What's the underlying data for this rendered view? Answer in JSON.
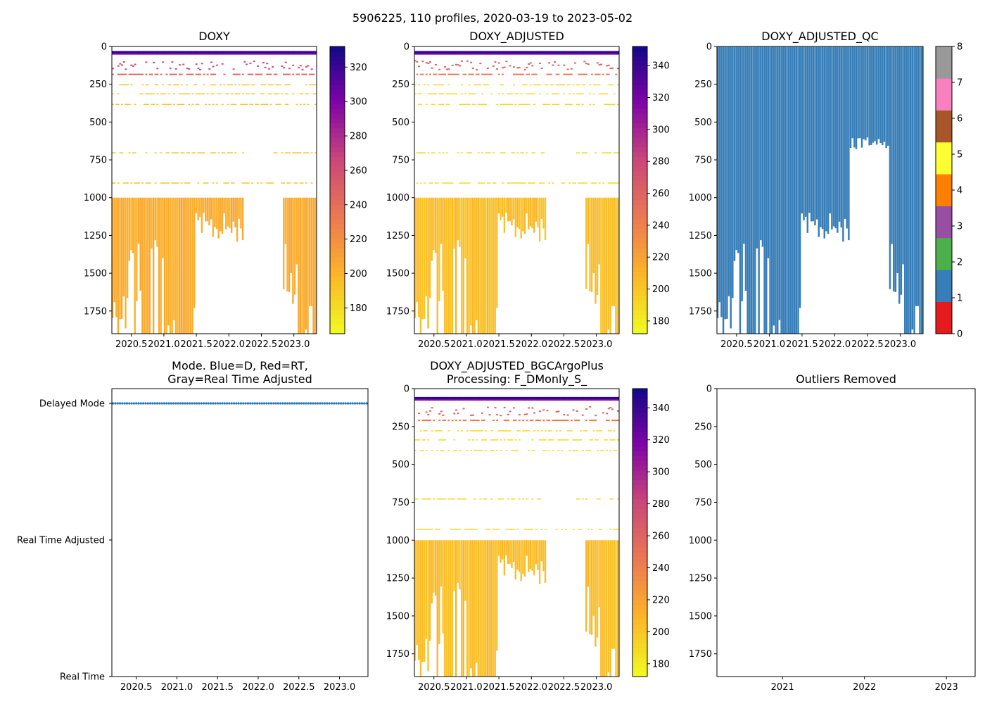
{
  "suptitle": "5906225, 110 profiles, 2020-03-19 to 2023-05-02",
  "colors": {
    "mode_delayed": "#1f77b4",
    "qc_good": "#377eb8",
    "doxy_bulk": "#fbb828"
  },
  "chart_data": [
    {
      "id": "doxy",
      "type": "heatmap",
      "title": "DOXY",
      "xlabel": "",
      "ylabel": "",
      "xlim": [
        2020.2,
        2023.35
      ],
      "ylim": [
        1900,
        0
      ],
      "xticks": [
        "2020.5",
        "2021.0",
        "2021.5",
        "2022.0",
        "2022.5",
        "2023.0"
      ],
      "yticks": [
        "0",
        "250",
        "500",
        "750",
        "1000",
        "1250",
        "1500",
        "1750"
      ],
      "colormap": "plasma_r",
      "colorbar": {
        "min": 165,
        "max": 332,
        "ticks": [
          "180",
          "200",
          "220",
          "240",
          "260",
          "280",
          "300",
          "320"
        ]
      }
    },
    {
      "id": "doxy_adjusted",
      "type": "heatmap",
      "title": "DOXY_ADJUSTED",
      "xlabel": "",
      "ylabel": "",
      "xlim": [
        2020.2,
        2023.35
      ],
      "ylim": [
        1900,
        0
      ],
      "xticks": [
        "2020.5",
        "2021.0",
        "2021.5",
        "2022.0",
        "2022.5",
        "2023.0"
      ],
      "yticks": [
        "0",
        "250",
        "500",
        "750",
        "1000",
        "1250",
        "1500",
        "1750"
      ],
      "colormap": "plasma_r",
      "colorbar": {
        "min": 172,
        "max": 352,
        "ticks": [
          "180",
          "200",
          "220",
          "240",
          "260",
          "280",
          "300",
          "320",
          "340"
        ]
      }
    },
    {
      "id": "doxy_adjusted_qc",
      "type": "heatmap",
      "title": "DOXY_ADJUSTED_QC",
      "xlabel": "",
      "ylabel": "",
      "xlim": [
        2020.2,
        2023.35
      ],
      "ylim": [
        1900,
        0
      ],
      "xticks": [
        "2020.5",
        "2021.0",
        "2021.5",
        "2022.0",
        "2022.5",
        "2023.0"
      ],
      "yticks": [
        "0",
        "250",
        "500",
        "750",
        "1000",
        "1250",
        "1500",
        "1750"
      ],
      "colorbar": {
        "ticks": [
          "0",
          "1",
          "2",
          "3",
          "4",
          "5",
          "6",
          "7",
          "8"
        ],
        "categories": [
          {
            "value": 0,
            "color": "#e41a1c"
          },
          {
            "value": 1,
            "color": "#377eb8"
          },
          {
            "value": 2,
            "color": "#4daf4a"
          },
          {
            "value": 3,
            "color": "#984ea3"
          },
          {
            "value": 4,
            "color": "#ff7f00"
          },
          {
            "value": 5,
            "color": "#ffff33"
          },
          {
            "value": 6,
            "color": "#a65628"
          },
          {
            "value": 7,
            "color": "#f781bf"
          },
          {
            "value": 8,
            "color": "#999999"
          }
        ]
      }
    },
    {
      "id": "mode",
      "type": "scatter",
      "title": "Mode. Blue=D, Red=RT,\nGray=Real Time Adjusted",
      "title_lines": [
        "Mode. Blue=D, Red=RT,",
        "Gray=Real Time Adjusted"
      ],
      "xlabel": "",
      "ylabel": "",
      "xlim": [
        2020.2,
        2023.35
      ],
      "xticks": [
        "2020.5",
        "2021.0",
        "2021.5",
        "2022.0",
        "2022.5",
        "2023.0"
      ],
      "ycategories": [
        "Delayed Mode",
        "Real Time Adjusted",
        "Real Time"
      ],
      "points_count": 110,
      "all_points_mode": "Delayed Mode"
    },
    {
      "id": "bgcargoplus",
      "type": "heatmap",
      "title": "DOXY_ADJUSTED_BGCArgoPlus\nProcessing: F_DMonly_S_",
      "title_lines": [
        "DOXY_ADJUSTED_BGCArgoPlus",
        "Processing: F_DMonly_S_"
      ],
      "xlabel": "",
      "ylabel": "",
      "xlim": [
        2020.2,
        2023.35
      ],
      "ylim": [
        1900,
        0
      ],
      "xticks": [
        "2020.5",
        "2021.0",
        "2021.5",
        "2022.0",
        "2022.5",
        "2023.0"
      ],
      "yticks": [
        "0",
        "250",
        "500",
        "750",
        "1000",
        "1250",
        "1500",
        "1750"
      ],
      "colormap": "plasma_r",
      "colorbar": {
        "min": 172,
        "max": 352,
        "ticks": [
          "180",
          "200",
          "220",
          "240",
          "260",
          "280",
          "300",
          "320",
          "340"
        ]
      }
    },
    {
      "id": "outliers",
      "type": "scatter",
      "title": "Outliers Removed",
      "xlabel": "",
      "ylabel": "",
      "xlim": [
        2020.2,
        2023.35
      ],
      "ylim": [
        1900,
        0
      ],
      "xticks": [
        "2021",
        "2022",
        "2023"
      ],
      "yticks": [
        "0",
        "250",
        "500",
        "750",
        "1000",
        "1250",
        "1500",
        "1750"
      ],
      "points": []
    }
  ]
}
